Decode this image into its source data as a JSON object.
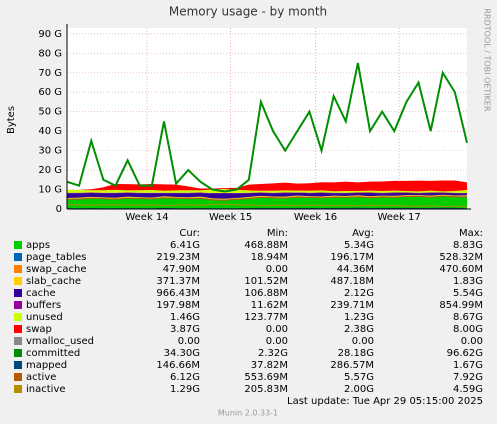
{
  "chart_data": {
    "type": "munin-area",
    "title": "Memory usage - by month",
    "y_label": "Bytes",
    "side_text": "RRDTOOL / TOBI OETIKER",
    "x": [
      0,
      1,
      2,
      3,
      4,
      5,
      6,
      7,
      8,
      9,
      10,
      11,
      12,
      13,
      14,
      15,
      16,
      17,
      18,
      19,
      20,
      21,
      22,
      23,
      24,
      25,
      26,
      27,
      28,
      29,
      30,
      31,
      32,
      33
    ],
    "xlim": [
      0,
      33
    ],
    "xticks": [
      {
        "value": 6.6,
        "label": "Week 14"
      },
      {
        "value": 13.5,
        "label": "Week 15"
      },
      {
        "value": 20.5,
        "label": "Week 16"
      },
      {
        "value": 27.4,
        "label": "Week 17"
      }
    ],
    "ylim": [
      0,
      93
    ],
    "yticks": [
      0,
      {
        "value": 10,
        "label": "10 G"
      },
      {
        "value": 20,
        "label": "20 G"
      },
      {
        "value": 30,
        "label": "30 G"
      },
      {
        "value": 40,
        "label": "40 G"
      },
      {
        "value": 50,
        "label": "50 G"
      },
      {
        "value": 60,
        "label": "60 G"
      },
      {
        "value": 70,
        "label": "70 G"
      },
      {
        "value": 80,
        "label": "80 G"
      },
      {
        "value": 90,
        "label": "90 G"
      }
    ],
    "grid": true,
    "columns": [
      "Cur:",
      "Min:",
      "Avg:",
      "Max:"
    ],
    "series": [
      {
        "name": "apps",
        "color": "#00cc00",
        "style": "area",
        "stats": [
          "6.41G",
          "468.88M",
          "5.34G",
          "8.83G"
        ],
        "values": [
          5.0,
          5.2,
          5.5,
          5.3,
          5.1,
          5.6,
          5.4,
          5.2,
          5.8,
          5.5,
          5.3,
          5.6,
          4.8,
          4.6,
          5.0,
          5.4,
          6.0,
          5.8,
          5.6,
          6.2,
          5.9,
          5.7,
          6.1,
          6.0,
          6.3,
          5.8,
          6.2,
          6.0,
          6.4,
          6.5,
          6.1,
          6.6,
          6.3,
          6.4
        ]
      },
      {
        "name": "page_tables",
        "color": "#0066b3",
        "style": "area",
        "stats": [
          "219.23M",
          "18.94M",
          "196.17M",
          "528.32M"
        ],
        "values": [
          0.2,
          0.2,
          0.2,
          0.2,
          0.2,
          0.2,
          0.2,
          0.2,
          0.2,
          0.2,
          0.2,
          0.2,
          0.2,
          0.2,
          0.2,
          0.2,
          0.2,
          0.2,
          0.2,
          0.2,
          0.2,
          0.2,
          0.2,
          0.2,
          0.2,
          0.2,
          0.2,
          0.2,
          0.2,
          0.2,
          0.2,
          0.2,
          0.2,
          0.2
        ]
      },
      {
        "name": "swap_cache",
        "color": "#ff8000",
        "style": "area",
        "stats": [
          "47.90M",
          "0.00",
          "44.36M",
          "470.60M"
        ],
        "values": [
          0.05,
          0.05,
          0.05,
          0.05,
          0.05,
          0.05,
          0.05,
          0.05,
          0.05,
          0.05,
          0.05,
          0.05,
          0.05,
          0.05,
          0.05,
          0.05,
          0.05,
          0.05,
          0.05,
          0.05,
          0.05,
          0.05,
          0.05,
          0.05,
          0.05,
          0.05,
          0.05,
          0.05,
          0.05,
          0.05,
          0.05,
          0.05,
          0.05,
          0.05
        ]
      },
      {
        "name": "slab_cache",
        "color": "#ffcc00",
        "style": "area",
        "stats": [
          "371.37M",
          "101.52M",
          "487.18M",
          "1.83G"
        ],
        "values": [
          0.4,
          0.4,
          0.5,
          0.4,
          0.4,
          0.5,
          0.4,
          0.4,
          0.5,
          0.4,
          0.4,
          0.5,
          0.4,
          0.4,
          0.4,
          0.5,
          0.5,
          0.4,
          0.5,
          0.5,
          0.4,
          0.5,
          0.5,
          0.4,
          0.5,
          0.5,
          0.4,
          0.5,
          0.5,
          0.4,
          0.5,
          0.5,
          0.4,
          0.4
        ]
      },
      {
        "name": "cache",
        "color": "#330099",
        "style": "area",
        "stats": [
          "966.43M",
          "106.88M",
          "2.12G",
          "5.54G"
        ],
        "values": [
          2.5,
          2.3,
          2.0,
          2.2,
          2.4,
          1.9,
          2.1,
          2.3,
          1.6,
          2.0,
          2.2,
          1.9,
          2.6,
          2.8,
          2.4,
          2.0,
          1.5,
          1.7,
          1.9,
          1.4,
          1.6,
          1.8,
          1.3,
          1.5,
          1.2,
          1.7,
          1.3,
          1.5,
          1.1,
          1.0,
          1.4,
          0.9,
          1.2,
          1.0
        ]
      },
      {
        "name": "buffers",
        "color": "#990099",
        "style": "area",
        "stats": [
          "197.98M",
          "11.62M",
          "239.71M",
          "854.99M"
        ],
        "values": [
          0.2,
          0.2,
          0.2,
          0.2,
          0.2,
          0.2,
          0.2,
          0.2,
          0.2,
          0.2,
          0.2,
          0.2,
          0.2,
          0.2,
          0.2,
          0.2,
          0.2,
          0.2,
          0.2,
          0.2,
          0.2,
          0.2,
          0.2,
          0.2,
          0.2,
          0.2,
          0.2,
          0.2,
          0.2,
          0.2,
          0.2,
          0.2,
          0.2,
          0.2
        ]
      },
      {
        "name": "unused",
        "color": "#ccff00",
        "style": "area",
        "stats": [
          "1.46G",
          "123.77M",
          "1.23G",
          "8.67G"
        ],
        "values": [
          1.5,
          1.4,
          1.2,
          1.3,
          1.5,
          1.1,
          1.3,
          1.4,
          1.0,
          1.2,
          1.3,
          1.1,
          1.8,
          2.0,
          1.6,
          1.2,
          0.9,
          1.0,
          1.1,
          0.9,
          1.0,
          1.1,
          0.8,
          0.9,
          0.8,
          1.0,
          0.9,
          1.0,
          0.8,
          0.7,
          1.0,
          0.6,
          0.9,
          1.5
        ]
      },
      {
        "name": "swap",
        "color": "#ff0000",
        "style": "area",
        "stats": [
          "3.87G",
          "0.00",
          "2.38G",
          "8.00G"
        ],
        "values": [
          0,
          0,
          0.5,
          1.5,
          3.0,
          3.2,
          3.0,
          3.1,
          3.3,
          3.0,
          2.0,
          1.0,
          0.5,
          0.5,
          1.0,
          3.0,
          3.5,
          3.8,
          4.0,
          3.6,
          3.9,
          4.2,
          4.5,
          4.8,
          4.4,
          4.6,
          4.9,
          5.0,
          5.2,
          5.5,
          5.0,
          5.6,
          5.4,
          3.9
        ]
      },
      {
        "name": "vmalloc_used",
        "color": "#888888",
        "style": "area",
        "stats": [
          "0.00",
          "0.00",
          "0.00",
          "0.00"
        ],
        "values": [
          0,
          0,
          0,
          0,
          0,
          0,
          0,
          0,
          0,
          0,
          0,
          0,
          0,
          0,
          0,
          0,
          0,
          0,
          0,
          0,
          0,
          0,
          0,
          0,
          0,
          0,
          0,
          0,
          0,
          0,
          0,
          0,
          0,
          0
        ]
      },
      {
        "name": "committed",
        "color": "#008f00",
        "style": "line",
        "stats": [
          "34.30G",
          "2.32G",
          "28.18G",
          "96.62G"
        ],
        "values": [
          14,
          12,
          35,
          15,
          12,
          25,
          12,
          12,
          45,
          13,
          20,
          14,
          10,
          9,
          10,
          15,
          55,
          40,
          30,
          40,
          50,
          30,
          58,
          45,
          75,
          40,
          50,
          40,
          55,
          65,
          40,
          70,
          60,
          34
        ]
      },
      {
        "name": "mapped",
        "color": "#00487d",
        "style": "line",
        "stats": [
          "146.66M",
          "37.82M",
          "286.57M",
          "1.67G"
        ],
        "values": [
          0.15,
          0.15,
          0.2,
          0.15,
          0.15,
          0.2,
          0.15,
          0.15,
          0.3,
          0.15,
          0.15,
          0.2,
          0.15,
          0.15,
          0.15,
          0.2,
          0.3,
          0.25,
          0.2,
          0.3,
          0.25,
          0.2,
          0.3,
          0.25,
          0.4,
          0.25,
          0.3,
          0.25,
          0.3,
          0.35,
          0.25,
          0.4,
          0.3,
          0.15
        ]
      },
      {
        "name": "active",
        "color": "#b35a00",
        "style": "line",
        "stats": [
          "6.12G",
          "553.69M",
          "5.57G",
          "7.92G"
        ],
        "values": [
          5.0,
          5.1,
          5.5,
          5.3,
          5.0,
          5.6,
          5.4,
          5.2,
          5.7,
          5.5,
          5.3,
          5.5,
          4.7,
          4.5,
          5.0,
          5.4,
          6.0,
          5.8,
          5.6,
          6.1,
          5.9,
          5.7,
          6.1,
          6.0,
          6.3,
          5.8,
          6.2,
          6.0,
          6.4,
          6.5,
          6.1,
          6.6,
          6.3,
          6.1
        ]
      },
      {
        "name": "inactive",
        "color": "#b38f00",
        "style": "line",
        "stats": [
          "1.29G",
          "205.83M",
          "2.00G",
          "4.59G"
        ],
        "values": [
          2.2,
          2.1,
          2.0,
          2.1,
          2.2,
          1.9,
          2.0,
          2.1,
          1.8,
          2.0,
          2.1,
          1.9,
          2.4,
          2.5,
          2.2,
          2.0,
          1.8,
          1.9,
          2.0,
          1.8,
          1.9,
          2.0,
          1.7,
          1.8,
          1.6,
          1.9,
          1.7,
          1.8,
          1.5,
          1.4,
          1.7,
          1.3,
          1.5,
          1.3
        ]
      }
    ],
    "last_update": "Last update:  Tue Apr 29 05:15:00 2025",
    "footer": "Munin 2.0.33-1"
  }
}
